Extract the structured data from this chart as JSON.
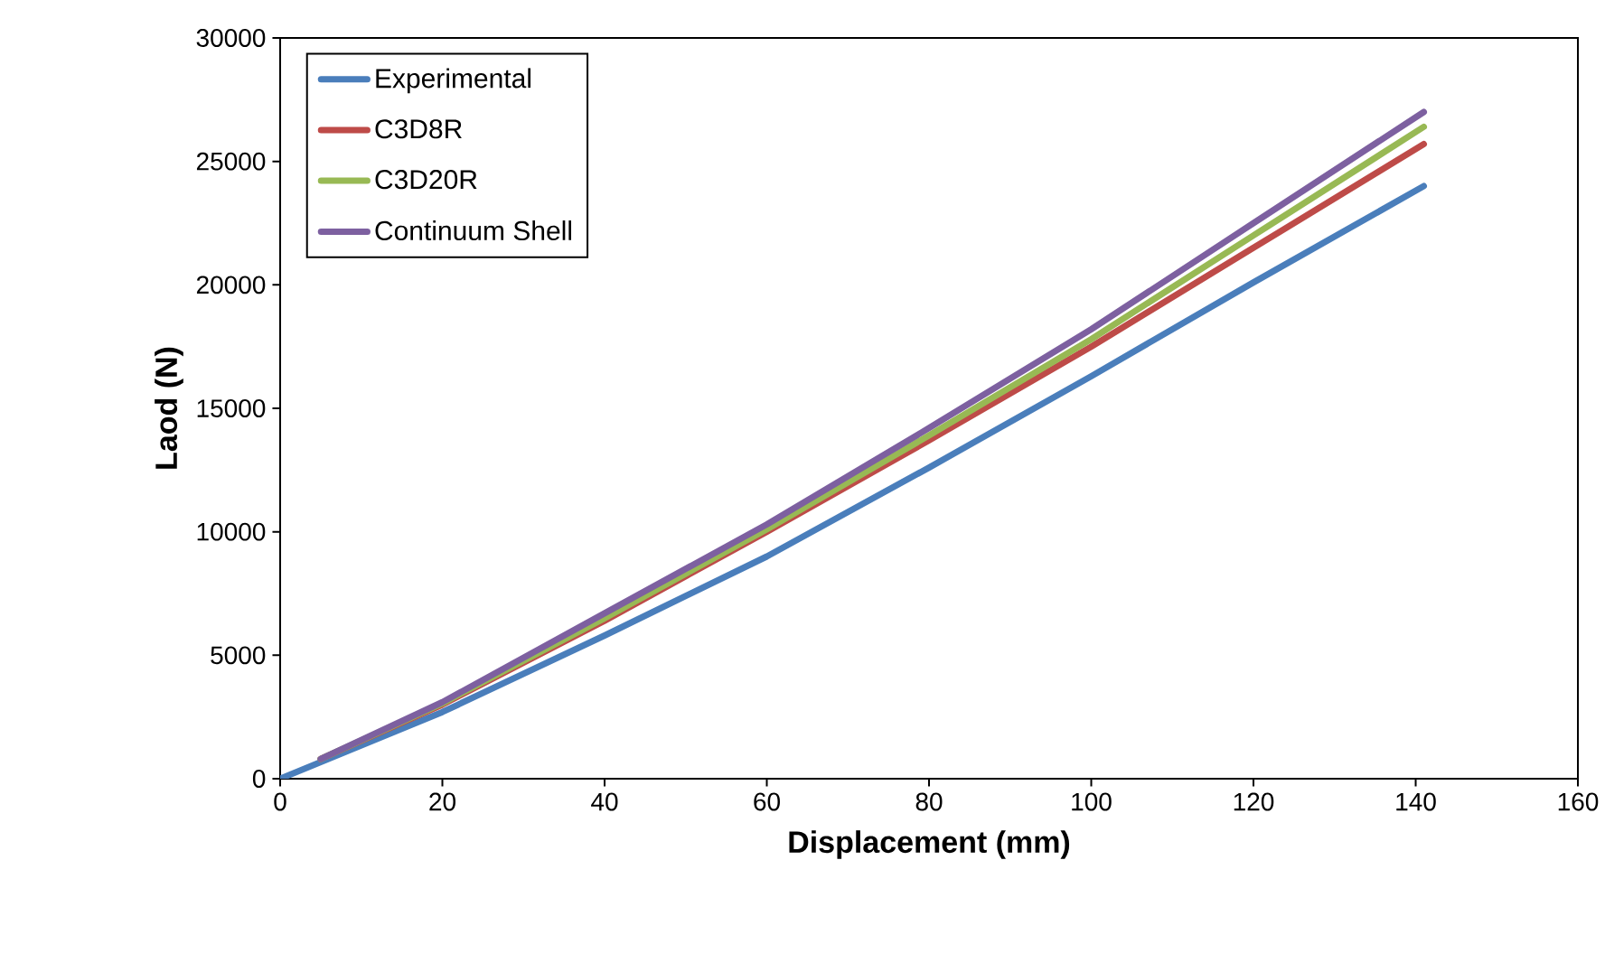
{
  "chart_data": {
    "type": "line",
    "xlabel": "Displacement (mm)",
    "ylabel": "Laod (N)",
    "xlim": [
      0,
      160
    ],
    "xticks": [
      0,
      20,
      40,
      60,
      80,
      100,
      120,
      140,
      160
    ],
    "ylim": [
      0,
      30000
    ],
    "yticks": [
      0,
      5000,
      10000,
      15000,
      20000,
      25000,
      30000
    ],
    "legend": "top left",
    "grid": false,
    "marker": "none",
    "line_style": "solid",
    "series": [
      {
        "name": "Experimental",
        "color": "#4a7ebb",
        "x": [
          0,
          20,
          40,
          60,
          80,
          100,
          120,
          141
        ],
        "values": [
          0,
          2700,
          5800,
          9000,
          12600,
          16300,
          20100,
          24000
        ]
      },
      {
        "name": "C3D8R",
        "color": "#be4b48",
        "x": [
          5,
          20,
          40,
          60,
          80,
          100,
          120,
          141
        ],
        "values": [
          800,
          3000,
          6400,
          10000,
          13700,
          17500,
          21500,
          25700
        ]
      },
      {
        "name": "C3D20R",
        "color": "#98b954",
        "x": [
          5,
          20,
          40,
          60,
          80,
          100,
          120,
          141
        ],
        "values": [
          800,
          3050,
          6500,
          10100,
          13900,
          17800,
          22000,
          26400
        ]
      },
      {
        "name": "Continuum Shell",
        "color": "#7d60a0",
        "x": [
          5,
          20,
          40,
          60,
          80,
          100,
          120,
          141
        ],
        "values": [
          800,
          3100,
          6700,
          10300,
          14200,
          18200,
          22500,
          27000
        ]
      }
    ]
  }
}
